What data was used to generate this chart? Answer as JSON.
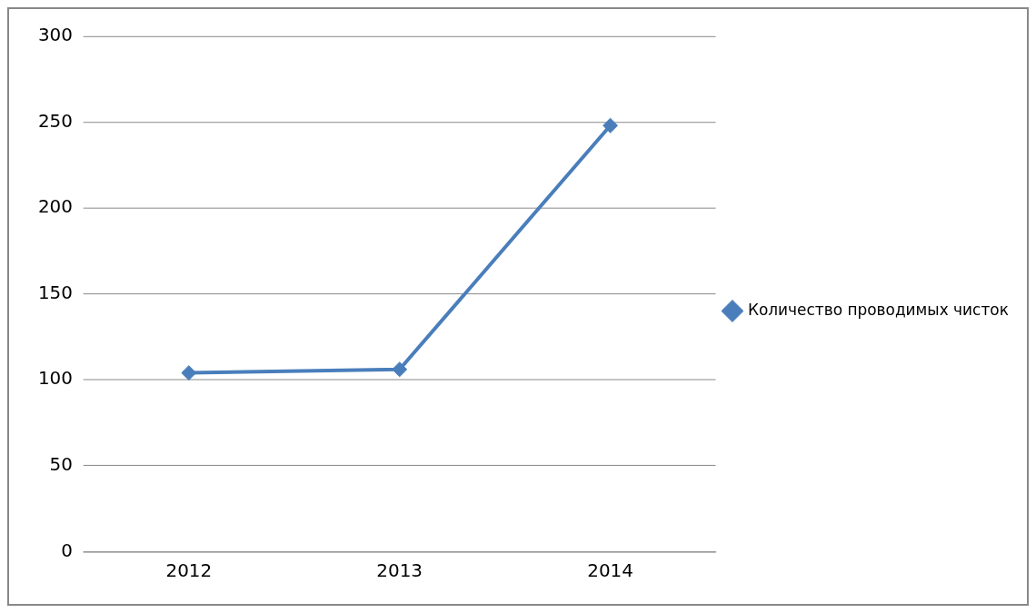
{
  "chart_data": {
    "type": "line",
    "categories": [
      "2012",
      "2013",
      "2014"
    ],
    "series": [
      {
        "name": "Количество проводимых чисток",
        "color": "#4a7ebb",
        "values": [
          104,
          106,
          248
        ]
      }
    ],
    "ylim": [
      0,
      300
    ],
    "yticks": [
      0,
      50,
      100,
      150,
      200,
      250,
      300
    ],
    "grid": "y",
    "legend": "right",
    "marker": "diamond",
    "line_style": "solid"
  }
}
